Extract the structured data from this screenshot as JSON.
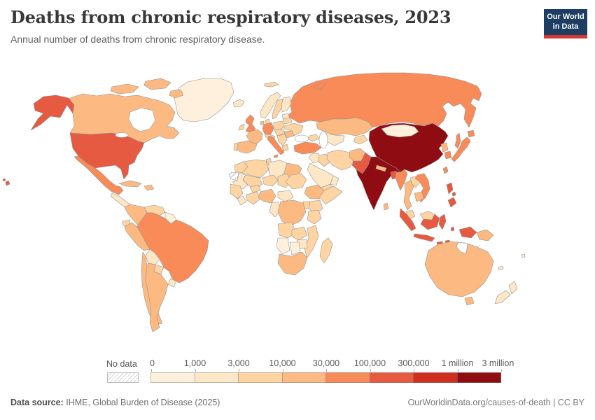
{
  "header": {
    "title": "Deaths from chronic respiratory diseases, 2023",
    "subtitle": "Annual number of deaths from chronic respiratory disease.",
    "logo_line1": "Our World",
    "logo_line2": "in Data",
    "logo_bg": "#1d3d63",
    "logo_accent": "#d73732"
  },
  "legend": {
    "no_data_label": "No data"
  },
  "footer": {
    "source_label": "Data source:",
    "source_rest": " IHME, Global Burden of Disease (2025)",
    "credit": "OurWorldinData.org/causes-of-death | CC BY"
  },
  "chart_data": {
    "type": "choropleth",
    "title": "Deaths from chronic respiratory diseases, 2023",
    "unit": "annual deaths",
    "legend_position": "bottom",
    "bin_edges": [
      "0",
      "1,000",
      "3,000",
      "10,000",
      "30,000",
      "100,000",
      "300,000",
      "1 million",
      "3 million"
    ],
    "bin_colors": [
      "#fef0dc",
      "#fde7c6",
      "#fdd4a2",
      "#fcba82",
      "#f98b58",
      "#e65a41",
      "#d02f20",
      "#8f0d12"
    ],
    "no_data_style": "gray diagonal hatching",
    "bin_meaning": "country_bins value i means deaths between bin_edges[i] and bin_edges[i+1]; 'nodata' means hatched",
    "country_bins": {
      "greenland": 0,
      "iceland": 1,
      "canada": 3,
      "canada_arctic_1": 3,
      "canada_arctic_2": 3,
      "canada_arctic_3": 3,
      "alaska": 5,
      "usa": 5,
      "hawaii": 5,
      "hawaii2": 5,
      "mexico": 4,
      "central_america": 1,
      "cuba": 3,
      "hispaniola": 3,
      "colombia": 3,
      "venezuela": 2,
      "guyanas": 0,
      "ecuador": 2,
      "peru": 3,
      "brazil": 4,
      "bolivia": 1,
      "paraguay": 2,
      "uruguay": 1,
      "chile": 3,
      "argentina": 3,
      "uk": 4,
      "ireland": 2,
      "norway": 1,
      "sweden": 2,
      "finland": 1,
      "baltics": 1,
      "denmark": 2,
      "germany": 4,
      "netherlands": 3,
      "france": 3,
      "spain": 3,
      "portugal": 2,
      "italy": 4,
      "sicily": 4,
      "alpine": 2,
      "poland": 2,
      "czech_hungary": 2,
      "balkans": 2,
      "greece": 2,
      "romania": 3,
      "ukraine": 2,
      "belarus": 2,
      "russia": 4,
      "sakhalin": 4,
      "svalbard": 2,
      "novaya_zemlya": 4,
      "kazakhstan": 3,
      "uzbek_turkmen": 1,
      "kyrgyz_tajik": 2,
      "caucasus": 2,
      "turkey": 4,
      "syria_jordan": 1,
      "iraq": 2,
      "iran": 2,
      "saudi_arabia": 1,
      "yemen": 2,
      "oman": 1,
      "afghanistan": 3,
      "pakistan": 5,
      "india": 7,
      "nepal": 3,
      "bangladesh": 5,
      "sri_lanka": 3,
      "myanmar": 4,
      "thailand": 3,
      "laos": 2,
      "vietnam": 4,
      "cambodia": 3,
      "malaysia": 2,
      "china": 7,
      "mongolia": 0,
      "north_korea": 3,
      "south_korea": 4,
      "japan": 4,
      "hokkaido": 4,
      "taiwan": 4,
      "philippines_luzon": 5,
      "philippines_visayas": 5,
      "philippines_mindanao": 5,
      "sumatra": 5,
      "java": 5,
      "borneo_malaysia": 2,
      "borneo_indonesia": 5,
      "sulawesi": 5,
      "moluccas": 5,
      "lesser_sunda_1": 5,
      "lesser_sunda_2": 5,
      "west_papua": 5,
      "papua_new_guinea": 3,
      "morocco": 2,
      "algeria": 2,
      "tunisia": 2,
      "libya": 1,
      "egypt": 3,
      "western_sahara": "nodata",
      "mauritania": 1,
      "mali": 2,
      "niger": 2,
      "chad": 2,
      "sudan": 2,
      "senegal_guinea": 2,
      "sierra_leone_liberia": 1,
      "ivory_coast_ghana": 2,
      "burkina_faso": 2,
      "nigeria": 3,
      "cameroon_gabon": 1,
      "central_african_republic": 1,
      "ethiopia": 3,
      "somalia": 2,
      "kenya": 2,
      "uganda": 2,
      "dr_congo": 3,
      "tanzania": 2,
      "angola": 2,
      "zambia": 2,
      "mozambique": 2,
      "zimbabwe": 1,
      "namibia": 0,
      "botswana": 0,
      "south_africa": 3,
      "madagascar": 2,
      "australia": 3,
      "tasmania": 3,
      "new_zealand_north": 1,
      "new_zealand_south": 1,
      "fiji": 1,
      "new_caledonia": 1
    }
  }
}
